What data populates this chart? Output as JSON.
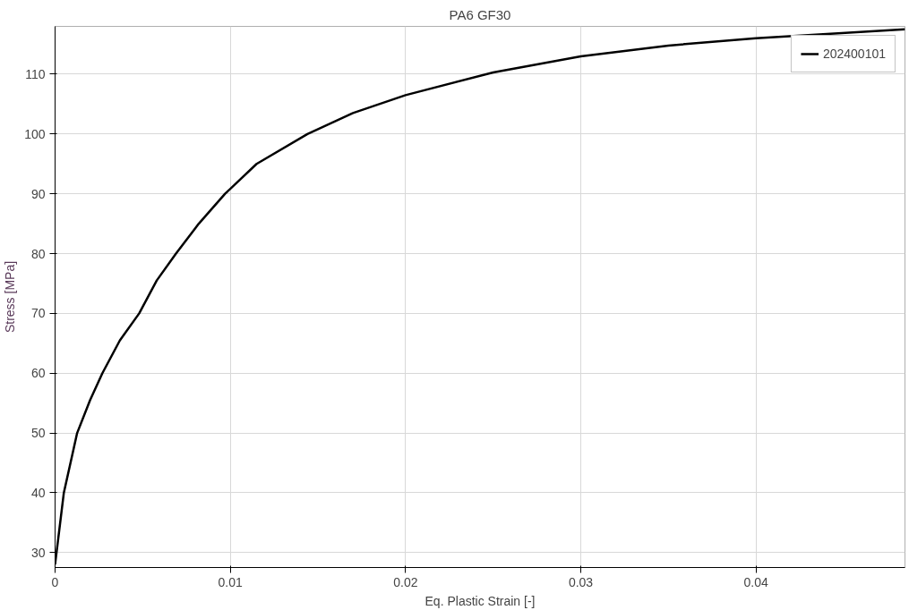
{
  "chart_data": {
    "type": "line",
    "title": "PA6 GF30",
    "xlabel": "Eq. Plastic Strain [-]",
    "ylabel": "Stress [MPa]",
    "x": [
      0,
      0.0005,
      0.00126,
      0.002,
      0.0027,
      0.0037,
      0.0048,
      0.0058,
      0.0069,
      0.0082,
      0.0097,
      0.0115,
      0.0144,
      0.017,
      0.02,
      0.025,
      0.03,
      0.035,
      0.04,
      0.0485
    ],
    "series": [
      {
        "name": "202400101",
        "color": "#000000",
        "values": [
          28,
          40,
          50,
          55.5,
          60,
          65.5,
          70,
          75.5,
          80,
          85,
          90,
          95,
          100,
          103.5,
          106.5,
          110.3,
          113,
          114.8,
          116,
          117.5
        ]
      }
    ],
    "xlim": [
      0,
      0.0485
    ],
    "ylim": [
      27.5,
      118
    ],
    "xticks": [
      0,
      0.01,
      0.02,
      0.03,
      0.04
    ],
    "yticks": [
      30,
      40,
      50,
      60,
      70,
      80,
      90,
      100,
      110
    ],
    "grid": true,
    "legend": "top right",
    "line_style": "solid",
    "marker": "none"
  }
}
